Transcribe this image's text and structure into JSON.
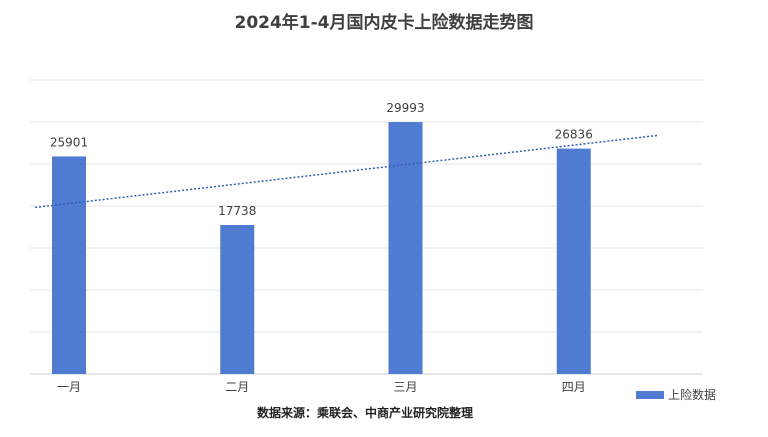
{
  "chart_data": {
    "type": "bar",
    "title": "2024年1-4月国内皮卡上险数据走势图",
    "categories": [
      "一月",
      "二月",
      "三月",
      "四月"
    ],
    "series": [
      {
        "name": "上险数据",
        "values": [
          25901,
          17738,
          29993,
          26836
        ]
      }
    ],
    "ylim": [
      0,
      35000
    ],
    "grid": true,
    "trendline": "linear",
    "legend": "bottom-right",
    "colors": {
      "bar": "#4f7bd1",
      "trend": "#2e5fb3"
    }
  },
  "source": "数据来源：乘联会、中商产业研究院整理"
}
